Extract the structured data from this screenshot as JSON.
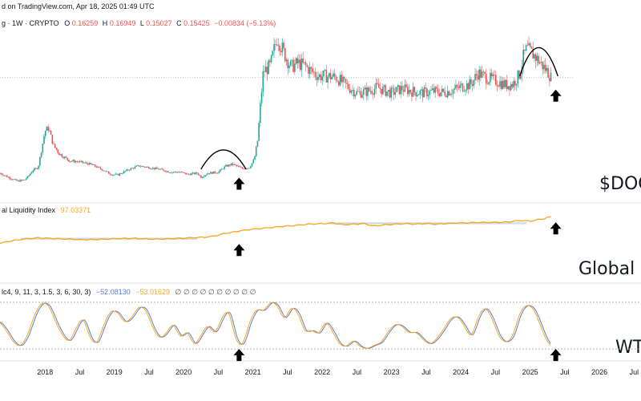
{
  "header": {
    "published": "d on TradingView.com, Apr 18, 2025 01:49 UTC"
  },
  "colors": {
    "up": "#26a69a",
    "down": "#ef5350",
    "liquidity": "#f5a623",
    "zone": "#c8d3d3",
    "wt1": "#f5a623",
    "wt2": "#5b7bd5",
    "arrow": "#000000"
  },
  "chart_data": [
    {
      "type": "candlestick",
      "legend": {
        "symbol": "g · 1W · CRYPTO",
        "o_label": "O",
        "o": "0.16259",
        "h_label": "H",
        "h": "0.16949",
        "l_label": "L",
        "l": "0.15027",
        "c_label": "C",
        "c": "0.15425",
        "change": "−0.00834 (−5.13%)"
      },
      "watermark": "$DOG",
      "x_range": [
        2017.35,
        2026.6
      ],
      "y_range": [
        0.0,
        0.27
      ],
      "anchors": [
        [
          2017.35,
          0.02
        ],
        [
          2017.5,
          0.011
        ],
        [
          2017.6,
          0.006
        ],
        [
          2017.7,
          0.008
        ],
        [
          2017.75,
          0.013
        ],
        [
          2017.82,
          0.025
        ],
        [
          2017.9,
          0.03
        ],
        [
          2018.0,
          0.095
        ],
        [
          2018.05,
          0.1
        ],
        [
          2018.12,
          0.07
        ],
        [
          2018.2,
          0.055
        ],
        [
          2018.35,
          0.042
        ],
        [
          2018.5,
          0.04
        ],
        [
          2018.65,
          0.036
        ],
        [
          2018.8,
          0.028
        ],
        [
          2018.95,
          0.018
        ],
        [
          2019.05,
          0.017
        ],
        [
          2019.2,
          0.026
        ],
        [
          2019.35,
          0.033
        ],
        [
          2019.5,
          0.03
        ],
        [
          2019.65,
          0.027
        ],
        [
          2019.8,
          0.022
        ],
        [
          2019.95,
          0.022
        ],
        [
          2020.05,
          0.018
        ],
        [
          2020.2,
          0.02
        ],
        [
          2020.25,
          0.013
        ],
        [
          2020.35,
          0.02
        ],
        [
          2020.5,
          0.022
        ],
        [
          2020.6,
          0.032
        ],
        [
          2020.7,
          0.036
        ],
        [
          2020.85,
          0.028
        ],
        [
          2020.95,
          0.03
        ],
        [
          2021.02,
          0.045
        ],
        [
          2021.07,
          0.08
        ],
        [
          2021.1,
          0.13
        ],
        [
          2021.15,
          0.2
        ],
        [
          2021.25,
          0.21
        ],
        [
          2021.35,
          0.262
        ],
        [
          2021.45,
          0.232
        ],
        [
          2021.55,
          0.208
        ],
        [
          2021.65,
          0.215
        ],
        [
          2021.75,
          0.21
        ],
        [
          2021.85,
          0.2
        ],
        [
          2021.95,
          0.192
        ],
        [
          2022.05,
          0.192
        ],
        [
          2022.2,
          0.19
        ],
        [
          2022.35,
          0.175
        ],
        [
          2022.5,
          0.162
        ],
        [
          2022.65,
          0.165
        ],
        [
          2022.8,
          0.172
        ],
        [
          2022.9,
          0.166
        ],
        [
          2023.0,
          0.162
        ],
        [
          2023.15,
          0.17
        ],
        [
          2023.3,
          0.165
        ],
        [
          2023.45,
          0.162
        ],
        [
          2023.6,
          0.165
        ],
        [
          2023.75,
          0.163
        ],
        [
          2023.9,
          0.168
        ],
        [
          2024.0,
          0.173
        ],
        [
          2024.15,
          0.178
        ],
        [
          2024.25,
          0.198
        ],
        [
          2024.35,
          0.19
        ],
        [
          2024.5,
          0.184
        ],
        [
          2024.65,
          0.176
        ],
        [
          2024.75,
          0.178
        ],
        [
          2024.85,
          0.196
        ],
        [
          2024.9,
          0.225
        ],
        [
          2024.95,
          0.24
        ],
        [
          2025.05,
          0.23
        ],
        [
          2025.15,
          0.215
        ],
        [
          2025.25,
          0.2
        ],
        [
          2025.3,
          0.19
        ]
      ],
      "reference_line": 0.19
    },
    {
      "type": "line",
      "legend": {
        "name": "al Liquidity Index",
        "value": "97.03371"
      },
      "watermark": "Global M",
      "x_range": [
        2017.35,
        2026.6
      ],
      "y_range": [
        0,
        100
      ],
      "zones": [
        {
          "x": [
            2017.65,
            2020.2
          ],
          "y": [
            60,
            63
          ]
        },
        {
          "x": [
            2022.1,
            2024.95
          ],
          "y": [
            85,
            88
          ]
        }
      ],
      "series": [
        {
          "points": [
            [
              2017.35,
              54
            ],
            [
              2017.5,
              58
            ],
            [
              2017.7,
              61
            ],
            [
              2017.9,
              63
            ],
            [
              2018.1,
              62
            ],
            [
              2018.3,
              61
            ],
            [
              2018.5,
              60
            ],
            [
              2018.7,
              60
            ],
            [
              2018.9,
              61
            ],
            [
              2019.1,
              62
            ],
            [
              2019.3,
              62
            ],
            [
              2019.5,
              61
            ],
            [
              2019.7,
              61
            ],
            [
              2019.9,
              62
            ],
            [
              2020.1,
              63
            ],
            [
              2020.3,
              64
            ],
            [
              2020.45,
              66
            ],
            [
              2020.6,
              70
            ],
            [
              2020.8,
              74
            ],
            [
              2021.0,
              77
            ],
            [
              2021.2,
              79
            ],
            [
              2021.4,
              81
            ],
            [
              2021.6,
              83
            ],
            [
              2021.8,
              85
            ],
            [
              2022.0,
              86
            ],
            [
              2022.15,
              87
            ],
            [
              2022.3,
              84
            ],
            [
              2022.45,
              85
            ],
            [
              2022.6,
              86
            ],
            [
              2022.75,
              82
            ],
            [
              2022.9,
              84
            ],
            [
              2023.05,
              85
            ],
            [
              2023.2,
              86
            ],
            [
              2023.35,
              85
            ],
            [
              2023.5,
              86
            ],
            [
              2023.65,
              85
            ],
            [
              2023.8,
              86
            ],
            [
              2023.95,
              87
            ],
            [
              2024.1,
              87
            ],
            [
              2024.25,
              88
            ],
            [
              2024.4,
              88
            ],
            [
              2024.55,
              88
            ],
            [
              2024.7,
              89
            ],
            [
              2024.85,
              91
            ],
            [
              2025.0,
              90
            ],
            [
              2025.1,
              92
            ],
            [
              2025.2,
              94
            ],
            [
              2025.3,
              97
            ]
          ]
        }
      ]
    },
    {
      "type": "line",
      "legend": {
        "params": "lc4, 9, 11, 3, 1.5, 3, 6, 30, 3)",
        "v1": "−52.08130",
        "v2": "−53.01629",
        "rest": "∅ ∅ ∅ ∅ ∅ ∅ ∅ ∅ ∅ ∅"
      },
      "watermark": "WT",
      "x_range": [
        2017.35,
        2026.6
      ],
      "y_range": [
        -70,
        70
      ],
      "levels": [
        60,
        -60
      ],
      "series": [
        {
          "points": [
            [
              2017.35,
              10
            ],
            [
              2017.45,
              -15
            ],
            [
              2017.55,
              -45
            ],
            [
              2017.65,
              -55
            ],
            [
              2017.75,
              -25
            ],
            [
              2017.85,
              30
            ],
            [
              2017.95,
              60
            ],
            [
              2018.05,
              55
            ],
            [
              2018.15,
              10
            ],
            [
              2018.25,
              -25
            ],
            [
              2018.35,
              -45
            ],
            [
              2018.45,
              -5
            ],
            [
              2018.55,
              25
            ],
            [
              2018.65,
              -35
            ],
            [
              2018.75,
              -50
            ],
            [
              2018.85,
              5
            ],
            [
              2018.95,
              40
            ],
            [
              2019.05,
              35
            ],
            [
              2019.15,
              5
            ],
            [
              2019.25,
              20
            ],
            [
              2019.35,
              50
            ],
            [
              2019.45,
              45
            ],
            [
              2019.55,
              -5
            ],
            [
              2019.65,
              -35
            ],
            [
              2019.75,
              -20
            ],
            [
              2019.85,
              10
            ],
            [
              2019.95,
              -35
            ],
            [
              2020.05,
              -10
            ],
            [
              2020.15,
              -55
            ],
            [
              2020.25,
              -25
            ],
            [
              2020.35,
              5
            ],
            [
              2020.45,
              -25
            ],
            [
              2020.55,
              20
            ],
            [
              2020.65,
              45
            ],
            [
              2020.75,
              -40
            ],
            [
              2020.85,
              -55
            ],
            [
              2020.95,
              10
            ],
            [
              2021.05,
              45
            ],
            [
              2021.15,
              35
            ],
            [
              2021.25,
              62
            ],
            [
              2021.35,
              55
            ],
            [
              2021.45,
              10
            ],
            [
              2021.55,
              50
            ],
            [
              2021.65,
              35
            ],
            [
              2021.75,
              -20
            ],
            [
              2021.85,
              -10
            ],
            [
              2021.95,
              -25
            ],
            [
              2022.05,
              15
            ],
            [
              2022.15,
              -15
            ],
            [
              2022.25,
              -50
            ],
            [
              2022.35,
              -55
            ],
            [
              2022.45,
              -35
            ],
            [
              2022.55,
              -55
            ],
            [
              2022.65,
              -60
            ],
            [
              2022.75,
              -50
            ],
            [
              2022.85,
              -45
            ],
            [
              2022.95,
              -15
            ],
            [
              2023.05,
              5
            ],
            [
              2023.15,
              0
            ],
            [
              2023.25,
              -20
            ],
            [
              2023.35,
              -15
            ],
            [
              2023.45,
              -35
            ],
            [
              2023.55,
              -50
            ],
            [
              2023.65,
              -35
            ],
            [
              2023.75,
              -10
            ],
            [
              2023.85,
              20
            ],
            [
              2023.95,
              25
            ],
            [
              2024.05,
              0
            ],
            [
              2024.15,
              -35
            ],
            [
              2024.25,
              25
            ],
            [
              2024.35,
              50
            ],
            [
              2024.45,
              20
            ],
            [
              2024.55,
              -30
            ],
            [
              2024.65,
              -45
            ],
            [
              2024.75,
              -30
            ],
            [
              2024.85,
              35
            ],
            [
              2024.95,
              55
            ],
            [
              2025.05,
              45
            ],
            [
              2025.15,
              0
            ],
            [
              2025.25,
              -45
            ],
            [
              2025.3,
              -52
            ]
          ]
        }
      ]
    }
  ],
  "x_axis": {
    "ticks": [
      {
        "x": 2018.0,
        "label": "2018"
      },
      {
        "x": 2018.5,
        "label": "Jul"
      },
      {
        "x": 2019.0,
        "label": "2019"
      },
      {
        "x": 2019.5,
        "label": "Jul"
      },
      {
        "x": 2020.0,
        "label": "2020"
      },
      {
        "x": 2020.5,
        "label": "Jul"
      },
      {
        "x": 2021.0,
        "label": "2021"
      },
      {
        "x": 2021.5,
        "label": "Jul"
      },
      {
        "x": 2022.0,
        "label": "2022"
      },
      {
        "x": 2022.5,
        "label": "Jul"
      },
      {
        "x": 2023.0,
        "label": "2023"
      },
      {
        "x": 2023.5,
        "label": "Jul"
      },
      {
        "x": 2024.0,
        "label": "2024"
      },
      {
        "x": 2024.5,
        "label": "Jul"
      },
      {
        "x": 2025.0,
        "label": "2025"
      },
      {
        "x": 2025.5,
        "label": "Jul"
      },
      {
        "x": 2026.0,
        "label": "2026"
      },
      {
        "x": 2026.5,
        "label": "Jul"
      }
    ]
  },
  "annotations": {
    "arrows": [
      {
        "panel": 0,
        "x": 2020.8,
        "y": 0.012
      },
      {
        "panel": 0,
        "x": 2025.37,
        "y": 0.168
      },
      {
        "panel": 1,
        "x": 2020.8,
        "y": 53
      },
      {
        "panel": 1,
        "x": 2025.37,
        "y": 88
      },
      {
        "panel": 2,
        "x": 2020.8,
        "y": -60
      },
      {
        "panel": 2,
        "x": 2025.37,
        "y": -60
      }
    ],
    "arcs": [
      {
        "panel": 0,
        "x": [
          2020.25,
          2020.9
        ],
        "base": 0.027,
        "peak": 0.063
      },
      {
        "panel": 0,
        "x": [
          2024.85,
          2025.4
        ],
        "base": 0.192,
        "peak": 0.245
      }
    ]
  }
}
